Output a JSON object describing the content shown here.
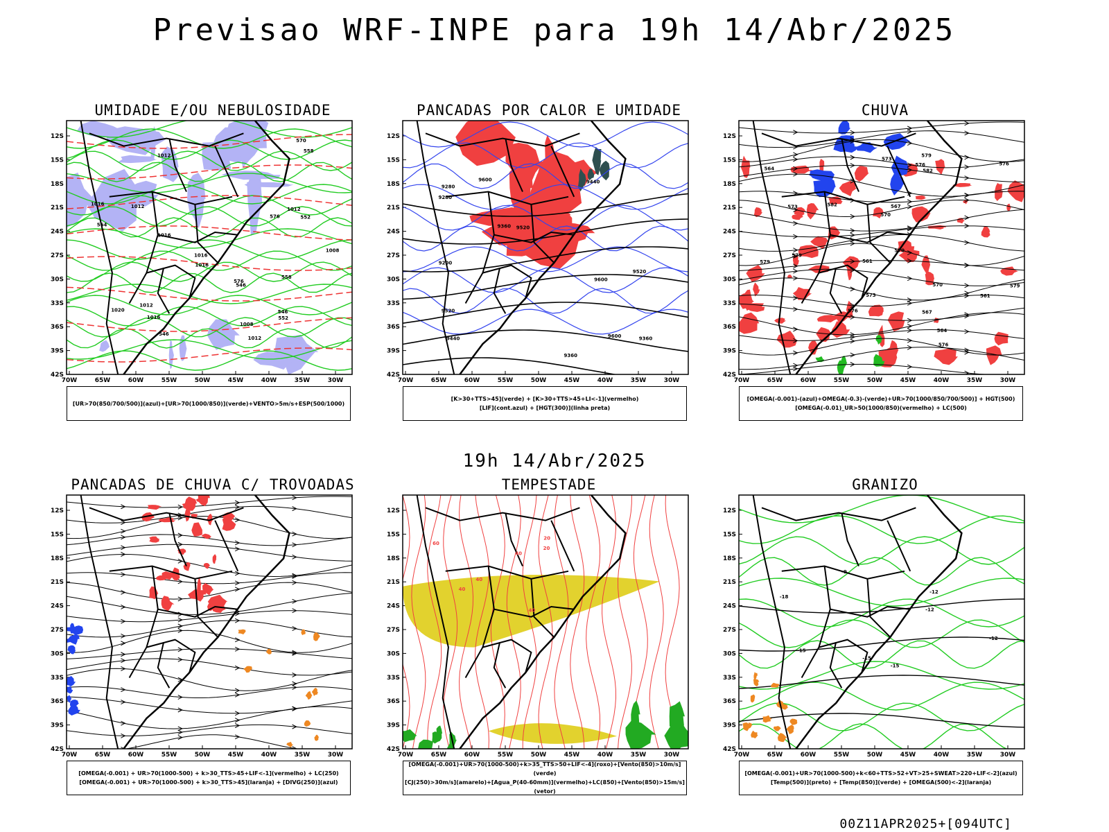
{
  "header": {
    "title": "Previsao WRF-INPE  para 19h 14/Abr/2025",
    "mid_title": "19h 14/Abr/2025",
    "run_code": "00Z11APR2025+[094UTC]"
  },
  "axes": {
    "lat_labels": [
      "12S",
      "15S",
      "18S",
      "21S",
      "24S",
      "27S",
      "30S",
      "33S",
      "36S",
      "39S",
      "42S"
    ],
    "lon_labels": [
      "70W",
      "65W",
      "60W",
      "55W",
      "50W",
      "45W",
      "40W",
      "35W",
      "30W"
    ]
  },
  "panels": [
    {
      "id": "umidade",
      "title": "UMIDADE E/OU NEBULOSIDADE",
      "legend": [
        "[UR>70(850/700/500)](azul)+[UR>70(1000/850)](verde)+VENTO>5m/s+ESP(500/1000)"
      ],
      "contour_labels": [
        "1012",
        "1012",
        "1012",
        "1012",
        "1012",
        "1008",
        "1008",
        "1016",
        "1016",
        "1016",
        "1020",
        "1016",
        "1016",
        "576",
        "576",
        "570",
        "564",
        "558",
        "558",
        "552",
        "546",
        "546",
        "546",
        "552"
      ],
      "colors": {
        "fill": "#b3b3f5",
        "lines": "#22cc22",
        "dashed": "#ee3333"
      }
    },
    {
      "id": "pancadas-calor",
      "title": "PANCADAS POR CALOR E UMIDADE",
      "legend": [
        "[K>30+TTS>45](verde) + [K>30+TTS>45+LI<-1](vermelho)",
        "[LIF](cont.azul) + [HGT(300)](linha preta)"
      ],
      "contour_labels": [
        "9600",
        "9520",
        "9440",
        "9600",
        "9520",
        "9600",
        "9520",
        "9440",
        "9360",
        "9360",
        "9280",
        "9200",
        "9280",
        "9360"
      ],
      "colors": {
        "red": "#f04040",
        "green": "#2e4f4f",
        "blue": "#3344ee"
      }
    },
    {
      "id": "chuva",
      "title": "CHUVA",
      "legend": [
        "[OMEGA(-0.001)-(azul)+OMEGA(-0.3)-(verde)+UR>70(1000/850/700/500)] + HGT(500)",
        "[OMEGA(-0.01)_UR>50(1000/850)(vermelho) + LC(500)"
      ],
      "contour_labels": [
        "582",
        "579",
        "576",
        "582",
        "579",
        "576",
        "573",
        "570",
        "567",
        "564",
        "561",
        "573",
        "576",
        "579",
        "579",
        "573",
        "576",
        "570",
        "564",
        "567",
        "561",
        "570"
      ],
      "colors": {
        "red": "#f04040",
        "blue": "#2244ee",
        "green": "#22bb22"
      }
    },
    {
      "id": "trovoadas",
      "title": "PANCADAS DE CHUVA C/ TROVOADAS",
      "legend": [
        "[OMEGA(-0.001) + UR>70(1000-500) + k>30_TTS>45+LIF<-1](vermelho) + LC(250)",
        "[OMEGA(-0.001) + UR>70(1000-500) + k>30_TTS>45](laranja) + [DIVG(250)](azul)"
      ],
      "contour_labels": [],
      "colors": {
        "red": "#f04040",
        "blue": "#2244ee",
        "orange": "#ee8822"
      }
    },
    {
      "id": "tempestade",
      "title": "TEMPESTADE",
      "legend": [
        "[OMEGA(-0.001)+UR>70(1000-500)+k>35_TTS>50+LIF<-4](roxo)+[Vento(850)>10m/s](verde)",
        "[CJ(250)>30m/s](amarelo)+[Agua_P(40-60mm)](vermelho)+LC(850)+[Vento(850)>15m/s](vetor)"
      ],
      "contour_labels": [
        "60",
        "40",
        "40",
        "40",
        "40",
        "20",
        "20"
      ],
      "colors": {
        "yellow": "#e2d22e",
        "lines": "#f04040",
        "green": "#22aa22"
      }
    },
    {
      "id": "granizo",
      "title": "GRANIZO",
      "legend": [
        "[OMEGA(-0.001)+UR>70(1000-500)+k<60+TTS>52+VT>25+SWEAT>220+LIF<-2](azul)",
        "[Temp(500)](preto) + [Temp(850)](verde) + [OMEGA(500)<-2](laranja)"
      ],
      "contour_labels": [
        "-9",
        "-12",
        "-12",
        "-15",
        "-15",
        "-15",
        "-18",
        "-12"
      ],
      "colors": {
        "green": "#22cc22",
        "orange": "#ee8822"
      }
    }
  ]
}
